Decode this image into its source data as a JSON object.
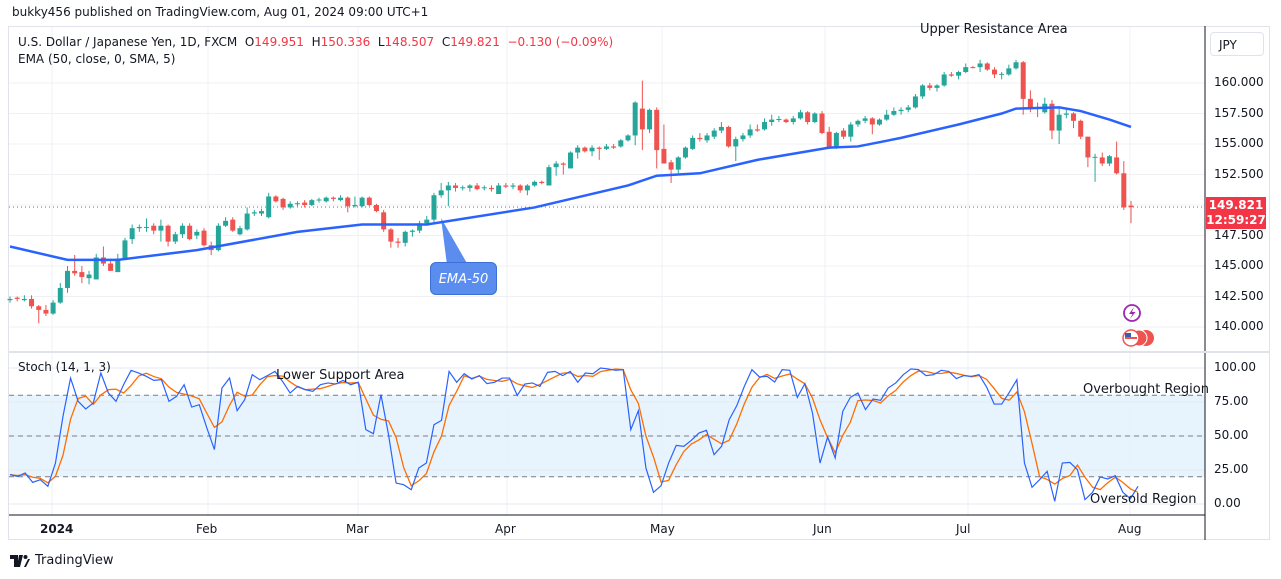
{
  "header": {
    "published": "bukky456 published on TradingView.com, Aug 01, 2024 09:00 UTC+1",
    "symbol": "U.S. Dollar / Japanese Yen, 1D, FXCM",
    "open_label": "O",
    "open": "149.951",
    "high_label": "H",
    "high": "150.336",
    "low_label": "L",
    "low": "148.507",
    "close_label": "C",
    "close": "149.821",
    "change": "−0.130 (−0.09%)",
    "indicator": "EMA (50, close, 0, SMA, 5)"
  },
  "price_axis": {
    "currency": "JPY",
    "ticks": [
      "160.000",
      "157.500",
      "155.000",
      "152.500",
      "147.500",
      "145.000",
      "142.500",
      "140.000"
    ],
    "last_price": "149.821",
    "countdown": "12:59:27"
  },
  "time_axis": {
    "ticks": [
      "2024",
      "Feb",
      "Mar",
      "Apr",
      "May",
      "Jun",
      "Jul",
      "Aug"
    ]
  },
  "stoch": {
    "label": "Stoch (14, 1, 3)",
    "ticks": [
      "100.00",
      "75.00",
      "50.00",
      "25.00",
      "0.00"
    ],
    "overbought": 80,
    "oversold": 20
  },
  "annotations": {
    "upper": "Upper Resistance Area",
    "lower": "Lower Support Area",
    "overbought": "Overbought Region",
    "oversold": "Oversold Region",
    "ema_callout": "EMA-50"
  },
  "footer": {
    "brand": "TradingView"
  },
  "colors": {
    "up": "#26a69a",
    "down": "#ef5350",
    "ema": "#2962ff",
    "k": "#2962ff",
    "d": "#ff6d00",
    "band": "#e3f2fd",
    "price_label": "#f23645",
    "event": "#9c27b0"
  },
  "icons": [
    "lightning-event-icon",
    "us-flag-events-icon",
    "tradingview-logo-icon"
  ],
  "chart_data": [
    {
      "type": "candlestick",
      "title": "U.S. Dollar / Japanese Yen, 1D, FXCM",
      "ylim": [
        138,
        163
      ],
      "grid": true,
      "ohlc": [
        [
          142.2,
          142.5,
          142.0,
          142.3
        ],
        [
          142.4,
          142.5,
          142.1,
          142.3
        ],
        [
          142.2,
          142.6,
          142.1,
          142.3
        ],
        [
          142.3,
          142.6,
          141.5,
          141.7
        ],
        [
          141.7,
          141.8,
          140.3,
          141.4
        ],
        [
          141.4,
          141.8,
          140.9,
          141.1
        ],
        [
          141.1,
          142.2,
          141.0,
          142.0
        ],
        [
          142.0,
          143.6,
          141.9,
          143.2
        ],
        [
          143.2,
          145.0,
          142.8,
          144.6
        ],
        [
          144.6,
          145.9,
          144.2,
          144.4
        ],
        [
          144.5,
          145.0,
          143.6,
          144.1
        ],
        [
          144.0,
          144.6,
          143.5,
          144.3
        ],
        [
          143.9,
          146.0,
          143.9,
          145.7
        ],
        [
          145.7,
          146.6,
          145.0,
          145.2
        ],
        [
          145.2,
          145.6,
          144.6,
          144.6
        ],
        [
          144.5,
          146.0,
          144.5,
          145.6
        ],
        [
          145.6,
          147.3,
          145.5,
          147.1
        ],
        [
          147.2,
          148.4,
          146.8,
          148.1
        ],
        [
          148.1,
          148.4,
          147.8,
          148.2
        ],
        [
          148.2,
          148.9,
          147.8,
          148.2
        ],
        [
          148.3,
          148.5,
          147.6,
          147.9
        ],
        [
          147.9,
          148.8,
          147.0,
          148.3
        ],
        [
          148.3,
          148.4,
          146.6,
          147.0
        ],
        [
          147.0,
          147.8,
          146.8,
          147.6
        ],
        [
          147.6,
          148.5,
          147.3,
          148.3
        ],
        [
          148.3,
          148.5,
          147.1,
          147.2
        ],
        [
          147.5,
          148.0,
          147.2,
          147.8
        ],
        [
          147.9,
          148.1,
          146.6,
          146.7
        ],
        [
          146.7,
          147.0,
          145.9,
          146.3
        ],
        [
          146.3,
          148.5,
          146.2,
          148.3
        ],
        [
          148.3,
          149.0,
          148.2,
          148.7
        ],
        [
          148.8,
          149.0,
          147.8,
          147.9
        ],
        [
          147.6,
          148.3,
          147.5,
          148.1
        ],
        [
          148.0,
          149.8,
          147.9,
          149.3
        ],
        [
          149.3,
          149.6,
          149.1,
          149.4
        ],
        [
          149.3,
          149.7,
          149.1,
          149.5
        ],
        [
          149.0,
          151.0,
          148.9,
          150.7
        ],
        [
          150.7,
          150.8,
          150.2,
          150.3
        ],
        [
          150.5,
          150.6,
          149.6,
          149.8
        ],
        [
          149.8,
          150.3,
          149.7,
          150.1
        ],
        [
          150.1,
          150.3,
          149.9,
          150.15
        ],
        [
          150.2,
          150.4,
          149.8,
          150.0
        ],
        [
          150.0,
          150.5,
          149.9,
          150.4
        ],
        [
          150.4,
          150.6,
          150.2,
          150.45
        ],
        [
          150.3,
          150.7,
          150.2,
          150.6
        ],
        [
          150.6,
          150.7,
          150.3,
          150.5
        ],
        [
          150.4,
          150.8,
          150.3,
          150.6
        ],
        [
          150.6,
          150.7,
          149.4,
          149.9
        ],
        [
          149.9,
          150.7,
          149.8,
          150.0
        ],
        [
          149.9,
          150.7,
          149.8,
          150.6
        ],
        [
          150.6,
          150.7,
          149.9,
          150.0
        ],
        [
          150.0,
          150.1,
          149.4,
          149.5
        ],
        [
          149.4,
          149.6,
          147.8,
          148.0
        ],
        [
          148.0,
          148.1,
          146.5,
          147.0
        ],
        [
          147.0,
          147.3,
          146.5,
          146.9
        ],
        [
          146.9,
          147.9,
          146.6,
          147.8
        ],
        [
          147.8,
          148.0,
          147.4,
          147.9
        ],
        [
          147.9,
          148.7,
          147.7,
          148.5
        ],
        [
          148.5,
          149.1,
          148.3,
          148.8
        ],
        [
          148.8,
          151.0,
          148.6,
          150.8
        ],
        [
          150.8,
          151.8,
          150.6,
          151.2
        ],
        [
          151.2,
          151.9,
          149.9,
          151.6
        ],
        [
          151.6,
          151.8,
          151.1,
          151.4
        ],
        [
          151.4,
          151.6,
          151.2,
          151.45
        ],
        [
          151.4,
          151.7,
          151.1,
          151.6
        ],
        [
          151.6,
          151.8,
          151.2,
          151.3
        ],
        [
          151.4,
          151.6,
          151.2,
          151.45
        ],
        [
          151.4,
          151.6,
          151.1,
          151.3
        ],
        [
          150.9,
          151.8,
          150.9,
          151.6
        ],
        [
          151.6,
          151.8,
          151.4,
          151.5
        ],
        [
          151.5,
          151.8,
          151.3,
          151.6
        ],
        [
          151.6,
          151.7,
          151.0,
          151.2
        ],
        [
          151.2,
          151.7,
          150.8,
          151.6
        ],
        [
          151.6,
          152.0,
          151.5,
          151.9
        ],
        [
          151.9,
          152.0,
          151.7,
          151.8
        ],
        [
          151.6,
          153.3,
          151.6,
          153.1
        ],
        [
          153.1,
          153.6,
          152.4,
          153.4
        ],
        [
          153.4,
          153.5,
          152.5,
          153.3
        ],
        [
          153.0,
          154.4,
          153.0,
          154.3
        ],
        [
          154.3,
          154.9,
          153.8,
          154.7
        ],
        [
          154.7,
          154.8,
          154.3,
          154.4
        ],
        [
          154.4,
          154.9,
          154.0,
          154.7
        ],
        [
          154.7,
          154.8,
          153.7,
          154.6
        ],
        [
          154.6,
          155.0,
          154.5,
          154.8
        ],
        [
          154.8,
          155.0,
          154.6,
          154.7
        ],
        [
          154.8,
          155.4,
          154.7,
          155.3
        ],
        [
          155.3,
          155.8,
          155.2,
          155.7
        ],
        [
          155.7,
          158.5,
          154.9,
          158.4
        ],
        [
          157.9,
          160.2,
          154.5,
          156.2
        ],
        [
          156.2,
          157.9,
          155.9,
          157.8
        ],
        [
          157.8,
          158.0,
          153.0,
          154.5
        ],
        [
          154.6,
          156.6,
          153.4,
          153.4
        ],
        [
          153.5,
          153.7,
          151.8,
          152.9
        ],
        [
          152.9,
          154.0,
          152.6,
          153.9
        ],
        [
          153.9,
          154.8,
          153.8,
          154.7
        ],
        [
          154.6,
          155.7,
          154.5,
          155.5
        ],
        [
          155.5,
          155.9,
          155.2,
          155.4
        ],
        [
          155.3,
          155.9,
          155.1,
          155.7
        ],
        [
          155.6,
          156.3,
          155.4,
          156.1
        ],
        [
          156.1,
          156.8,
          155.9,
          156.4
        ],
        [
          156.4,
          156.5,
          154.7,
          154.8
        ],
        [
          154.8,
          155.6,
          153.6,
          155.4
        ],
        [
          155.4,
          155.9,
          155.2,
          155.7
        ],
        [
          155.7,
          156.6,
          155.5,
          156.2
        ],
        [
          156.2,
          156.6,
          156.0,
          156.1
        ],
        [
          156.2,
          157.1,
          156.1,
          156.8
        ],
        [
          156.8,
          157.4,
          156.5,
          157.0
        ],
        [
          157.0,
          157.3,
          156.8,
          157.05
        ],
        [
          157.0,
          157.1,
          156.7,
          156.8
        ],
        [
          156.8,
          157.3,
          156.6,
          157.1
        ],
        [
          157.1,
          157.8,
          157.0,
          157.6
        ],
        [
          157.6,
          157.7,
          156.6,
          156.8
        ],
        [
          156.8,
          157.6,
          156.7,
          157.5
        ],
        [
          157.5,
          157.7,
          155.8,
          155.9
        ],
        [
          156.0,
          156.4,
          154.6,
          154.7
        ],
        [
          154.7,
          156.0,
          154.6,
          155.9
        ],
        [
          156.1,
          156.3,
          155.4,
          155.6
        ],
        [
          155.6,
          156.8,
          155.2,
          156.6
        ],
        [
          156.6,
          157.0,
          156.4,
          156.9
        ],
        [
          156.9,
          157.3,
          156.7,
          157.1
        ],
        [
          157.1,
          157.2,
          155.8,
          156.6
        ],
        [
          156.6,
          157.1,
          156.5,
          157.0
        ],
        [
          157.0,
          157.8,
          156.9,
          157.4
        ],
        [
          157.4,
          158.0,
          157.3,
          157.7
        ],
        [
          157.7,
          158.0,
          157.4,
          157.8
        ],
        [
          157.8,
          158.2,
          157.6,
          158.0
        ],
        [
          158.0,
          159.1,
          157.9,
          158.9
        ],
        [
          158.9,
          159.9,
          158.7,
          159.8
        ],
        [
          159.8,
          160.0,
          159.4,
          159.6
        ],
        [
          159.6,
          159.9,
          159.3,
          159.8
        ],
        [
          159.8,
          160.9,
          159.7,
          160.7
        ],
        [
          160.7,
          160.9,
          160.5,
          160.6
        ],
        [
          160.6,
          161.0,
          160.3,
          160.9
        ],
        [
          160.9,
          161.6,
          160.8,
          161.3
        ],
        [
          161.3,
          161.4,
          161.2,
          161.25
        ],
        [
          161.3,
          161.9,
          160.9,
          161.6
        ],
        [
          161.6,
          161.7,
          161.0,
          161.1
        ],
        [
          161.1,
          161.3,
          160.4,
          160.7
        ],
        [
          160.7,
          160.9,
          160.3,
          160.75
        ],
        [
          160.7,
          161.5,
          160.6,
          161.2
        ],
        [
          161.2,
          161.9,
          161.1,
          161.7
        ],
        [
          161.7,
          161.8,
          157.4,
          158.7
        ],
        [
          158.7,
          159.4,
          157.6,
          157.9
        ],
        [
          158.0,
          158.4,
          157.2,
          157.9
        ],
        [
          157.6,
          158.8,
          157.5,
          158.3
        ],
        [
          158.3,
          158.6,
          155.4,
          156.1
        ],
        [
          156.1,
          157.9,
          155.0,
          157.4
        ],
        [
          157.4,
          157.8,
          157.1,
          157.5
        ],
        [
          157.5,
          157.6,
          156.3,
          156.9
        ],
        [
          156.9,
          157.0,
          155.4,
          155.6
        ],
        [
          155.6,
          155.6,
          153.1,
          153.9
        ],
        [
          153.9,
          154.2,
          151.9,
          153.95
        ],
        [
          153.9,
          154.3,
          153.2,
          153.4
        ],
        [
          153.4,
          154.1,
          153.2,
          154.0
        ],
        [
          153.9,
          155.2,
          152.5,
          152.6
        ],
        [
          152.6,
          153.6,
          149.6,
          149.8
        ],
        [
          149.951,
          150.336,
          148.507,
          149.821
        ]
      ],
      "ema50": [
        [
          0,
          146.6
        ],
        [
          8,
          145.5
        ],
        [
          15,
          145.5
        ],
        [
          26,
          146.3
        ],
        [
          40,
          147.8
        ],
        [
          49,
          148.4
        ],
        [
          58,
          148.4
        ],
        [
          73,
          149.8
        ],
        [
          86,
          151.6
        ],
        [
          90,
          152.4
        ],
        [
          96,
          152.6
        ],
        [
          104,
          153.7
        ],
        [
          114,
          154.7
        ],
        [
          118,
          154.8
        ],
        [
          124,
          155.5
        ],
        [
          132,
          156.6
        ],
        [
          138,
          157.5
        ],
        [
          140,
          157.9
        ],
        [
          146,
          158.0
        ],
        [
          149,
          157.7
        ],
        [
          153,
          157.0
        ],
        [
          156,
          156.4
        ]
      ]
    },
    {
      "type": "line",
      "title": "Stoch (14, 1, 3)",
      "ylim": [
        0,
        100
      ],
      "k": [
        21.6,
        20.3,
        22.8,
        15.9,
        17.9,
        13,
        30,
        64.5,
        92.6,
        75.5,
        69.9,
        74.3,
        96.3,
        81.6,
        75.5,
        87.7,
        98.3,
        96.3,
        93.9,
        90.9,
        91.4,
        75.5,
        79.2,
        87.7,
        71.3,
        73,
        55.9,
        40,
        85.3,
        92.6,
        68.6,
        76.7,
        95.1,
        91.4,
        94.4,
        97.5,
        90.2,
        81.6,
        86.5,
        84.1,
        82.8,
        87.7,
        89,
        88.2,
        90.9,
        87.7,
        89.5,
        54.7,
        51.7,
        80.4,
        51,
        15.4,
        14.2,
        10.5,
        26.5,
        30.1,
        58.3,
        61.5,
        97.5,
        89.5,
        95.8,
        91.9,
        94.4,
        88.5,
        89.5,
        92.6,
        92.6,
        79.9,
        88.2,
        89,
        86.5,
        96.8,
        97.5,
        94.4,
        97.5,
        89.5,
        96.3,
        95.8,
        100,
        99.3,
        98.3,
        98.8,
        54.7,
        68.6,
        26.5,
        8.6,
        13.5,
        30.1,
        43.1,
        42.4,
        46.8,
        52.2,
        54.2,
        36.3,
        42.4,
        62,
        72.3,
        86.5,
        98.8,
        93.4,
        93.9,
        89.7,
        98.8,
        98.3,
        78.4,
        88.5,
        66.9,
        30.1,
        49.3,
        33.8,
        68.1,
        78.4,
        81.6,
        69.4,
        77.2,
        76.2,
        85.3,
        89,
        95.1,
        99.3,
        98.8,
        94.4,
        95.1,
        98.3,
        97.5,
        92.2,
        94.4,
        93.9,
        95.1,
        86,
        73.5,
        73.5,
        82.1,
        91.4,
        30.1,
        12.3,
        17.9,
        24,
        2,
        30.1,
        30.6,
        25.2,
        3.2,
        8.6,
        19.9,
        18.4,
        20.8,
        8.6,
        3.9,
        13
      ]
    }
  ]
}
